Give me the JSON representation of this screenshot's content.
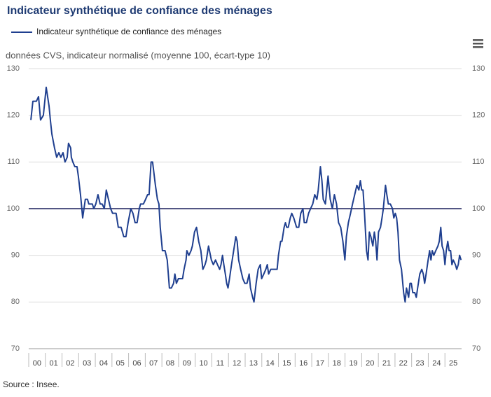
{
  "chart_data": {
    "type": "line",
    "title": "Indicateur synthétique de confiance des ménages",
    "subtitle": "données CVS, indicateur normalisé (moyenne 100, écart-type 10)",
    "source": "Source : Insee.",
    "reference_line": 100,
    "grid": true,
    "xlim": [
      0,
      26
    ],
    "xticks": [
      {
        "value": 0,
        "label": "00"
      },
      {
        "value": 1,
        "label": "01"
      },
      {
        "value": 2,
        "label": "02"
      },
      {
        "value": 3,
        "label": "03"
      },
      {
        "value": 4,
        "label": "04"
      },
      {
        "value": 5,
        "label": "05"
      },
      {
        "value": 6,
        "label": "06"
      },
      {
        "value": 7,
        "label": "07"
      },
      {
        "value": 8,
        "label": "08"
      },
      {
        "value": 9,
        "label": "09"
      },
      {
        "value": 10,
        "label": "10"
      },
      {
        "value": 11,
        "label": "11"
      },
      {
        "value": 12,
        "label": "12"
      },
      {
        "value": 13,
        "label": "13"
      },
      {
        "value": 14,
        "label": "14"
      },
      {
        "value": 15,
        "label": "15"
      },
      {
        "value": 16,
        "label": "16"
      },
      {
        "value": 17,
        "label": "17"
      },
      {
        "value": 18,
        "label": "18"
      },
      {
        "value": 19,
        "label": "19"
      },
      {
        "value": 20,
        "label": "20"
      },
      {
        "value": 21,
        "label": "21"
      },
      {
        "value": 22,
        "label": "22"
      },
      {
        "value": 23,
        "label": "23"
      },
      {
        "value": 24,
        "label": "24"
      },
      {
        "value": 25,
        "label": "25"
      }
    ],
    "ylim": [
      70,
      130
    ],
    "yticks": [
      70,
      80,
      90,
      100,
      110,
      120,
      130
    ],
    "x": [
      0.13,
      0.25,
      0.46,
      0.59,
      0.71,
      0.88,
      1.05,
      1.22,
      1.3,
      1.39,
      1.55,
      1.68,
      1.81,
      1.93,
      2.06,
      2.18,
      2.31,
      2.39,
      2.52,
      2.56,
      2.65,
      2.77,
      2.9,
      2.98,
      3.11,
      3.19,
      3.24,
      3.32,
      3.4,
      3.53,
      3.61,
      3.7,
      3.82,
      3.91,
      4.03,
      4.16,
      4.29,
      4.41,
      4.54,
      4.66,
      4.79,
      4.92,
      5.04,
      5.13,
      5.25,
      5.38,
      5.55,
      5.71,
      5.84,
      5.97,
      6.13,
      6.26,
      6.39,
      6.51,
      6.64,
      6.72,
      6.89,
      7.02,
      7.14,
      7.23,
      7.35,
      7.44,
      7.61,
      7.73,
      7.82,
      7.9,
      8.03,
      8.19,
      8.32,
      8.45,
      8.57,
      8.7,
      8.78,
      8.87,
      8.99,
      9.12,
      9.24,
      9.33,
      9.45,
      9.5,
      9.62,
      9.75,
      9.83,
      9.96,
      10.08,
      10.21,
      10.34,
      10.46,
      10.59,
      10.67,
      10.8,
      10.97,
      11.09,
      11.22,
      11.34,
      11.47,
      11.55,
      11.64,
      11.72,
      11.81,
      11.89,
      11.97,
      12.06,
      12.18,
      12.31,
      12.44,
      12.52,
      12.61,
      12.73,
      12.86,
      12.98,
      13.11,
      13.24,
      13.32,
      13.45,
      13.53,
      13.66,
      13.78,
      13.91,
      13.99,
      14.12,
      14.24,
      14.33,
      14.41,
      14.54,
      14.66,
      14.79,
      14.92,
      15.0,
      15.13,
      15.21,
      15.34,
      15.42,
      15.5,
      15.59,
      15.71,
      15.8,
      15.92,
      16.09,
      16.22,
      16.34,
      16.47,
      16.55,
      16.68,
      16.81,
      16.93,
      17.06,
      17.18,
      17.31,
      17.39,
      17.52,
      17.61,
      17.69,
      17.82,
      17.98,
      18.11,
      18.24,
      18.36,
      18.49,
      18.61,
      18.74,
      18.87,
      18.99,
      19.08,
      19.2,
      19.33,
      19.45,
      19.58,
      19.71,
      19.83,
      19.92,
      20.0,
      20.08,
      20.17,
      20.29,
      20.38,
      20.46,
      20.55,
      20.67,
      20.76,
      20.84,
      20.92,
      21.01,
      21.13,
      21.22,
      21.3,
      21.43,
      21.51,
      21.6,
      21.72,
      21.85,
      21.93,
      22.02,
      22.1,
      22.18,
      22.27,
      22.39,
      22.52,
      22.61,
      22.69,
      22.82,
      22.9,
      22.98,
      23.07,
      23.19,
      23.28,
      23.36,
      23.49,
      23.61,
      23.7,
      23.78,
      23.87,
      23.99,
      24.08,
      24.16,
      24.24,
      24.33,
      24.45,
      24.58,
      24.66,
      24.75,
      24.83,
      24.92,
      25.0,
      25.08,
      25.17,
      25.25,
      25.34,
      25.42,
      25.5,
      25.63,
      25.71,
      25.8,
      25.88,
      25.97
    ],
    "series": [
      {
        "name": "Indicateur synthétique de confiance des ménages",
        "color": "#1f3f8f",
        "values": [
          119,
          123,
          123,
          124,
          119,
          120,
          126,
          122,
          119,
          116,
          113,
          111,
          112,
          111,
          112,
          110,
          111,
          114,
          113,
          111,
          110,
          109,
          109,
          107,
          103,
          100,
          98,
          100,
          102,
          102,
          101,
          101,
          101,
          100,
          101,
          103,
          101,
          101,
          100,
          104,
          102,
          100,
          99,
          99,
          99,
          96,
          96,
          94,
          94,
          97,
          100,
          99,
          97,
          97,
          100,
          101,
          101,
          102,
          103,
          103,
          110,
          110,
          105,
          102,
          101,
          96,
          91,
          91,
          89,
          83,
          83,
          84,
          86,
          84,
          85,
          85,
          85,
          87,
          89,
          91,
          90,
          91,
          92,
          95,
          96,
          93,
          91,
          87,
          88,
          89,
          92,
          89,
          88,
          89,
          88,
          87,
          88,
          90,
          88,
          86,
          84,
          83,
          85,
          88,
          91,
          94,
          93,
          89,
          87,
          85,
          84,
          84,
          86,
          83,
          81,
          80,
          84,
          87,
          88,
          85,
          86,
          87,
          88,
          86,
          87,
          87,
          87,
          87,
          90,
          93,
          93,
          96,
          97,
          96,
          96,
          98,
          99,
          98,
          96,
          96,
          99,
          100,
          97,
          97,
          99,
          100,
          101,
          103,
          102,
          104,
          109,
          106,
          102,
          101,
          107,
          102,
          100,
          103,
          101,
          97,
          96,
          93,
          89,
          94,
          97,
          99,
          101,
          103,
          105,
          104,
          106,
          104,
          104,
          99,
          91,
          89,
          95,
          94,
          92,
          95,
          93,
          89,
          95,
          96,
          98,
          100,
          105,
          103,
          101,
          101,
          100,
          98,
          99,
          98,
          95,
          89,
          87,
          82,
          80,
          83,
          81,
          84,
          84,
          82,
          82,
          81,
          83,
          86,
          87,
          86,
          84,
          86,
          89,
          91,
          89,
          91,
          90,
          91,
          92,
          93,
          96,
          92,
          91,
          88,
          91,
          93,
          91,
          91,
          88,
          89,
          88,
          87,
          88,
          90,
          89
        ]
      }
    ]
  }
}
